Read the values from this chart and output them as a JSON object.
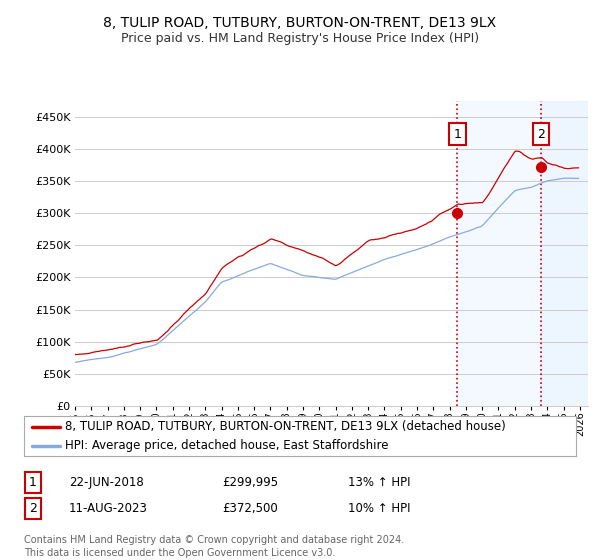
{
  "title": "8, TULIP ROAD, TUTBURY, BURTON-ON-TRENT, DE13 9LX",
  "subtitle": "Price paid vs. HM Land Registry's House Price Index (HPI)",
  "ylim": [
    0,
    475000
  ],
  "yticks": [
    0,
    50000,
    100000,
    150000,
    200000,
    250000,
    300000,
    350000,
    400000,
    450000
  ],
  "ytick_labels": [
    "£0",
    "£50K",
    "£100K",
    "£150K",
    "£200K",
    "£250K",
    "£300K",
    "£350K",
    "£400K",
    "£450K"
  ],
  "line1_color": "#cc0000",
  "line2_color": "#88aadd",
  "vline_color": "#cc0000",
  "transaction1_year": 2018.47,
  "transaction1_value": 299995,
  "transaction2_year": 2023.61,
  "transaction2_value": 372500,
  "legend1_label": "8, TULIP ROAD, TUTBURY, BURTON-ON-TRENT, DE13 9LX (detached house)",
  "legend2_label": "HPI: Average price, detached house, East Staffordshire",
  "annotation1_num": "1",
  "annotation1_date": "22-JUN-2018",
  "annotation1_price": "£299,995",
  "annotation1_hpi": "13% ↑ HPI",
  "annotation2_num": "2",
  "annotation2_date": "11-AUG-2023",
  "annotation2_price": "£372,500",
  "annotation2_hpi": "10% ↑ HPI",
  "footer": "Contains HM Land Registry data © Crown copyright and database right 2024.\nThis data is licensed under the Open Government Licence v3.0.",
  "background_color": "#ffffff",
  "grid_color": "#cccccc",
  "shaded_color": "#ddeeff",
  "hatch_color": "#bbccdd",
  "title_fontsize": 10,
  "subtitle_fontsize": 9,
  "tick_fontsize": 8,
  "legend_fontsize": 8.5,
  "annotation_fontsize": 8.5,
  "footer_fontsize": 7
}
